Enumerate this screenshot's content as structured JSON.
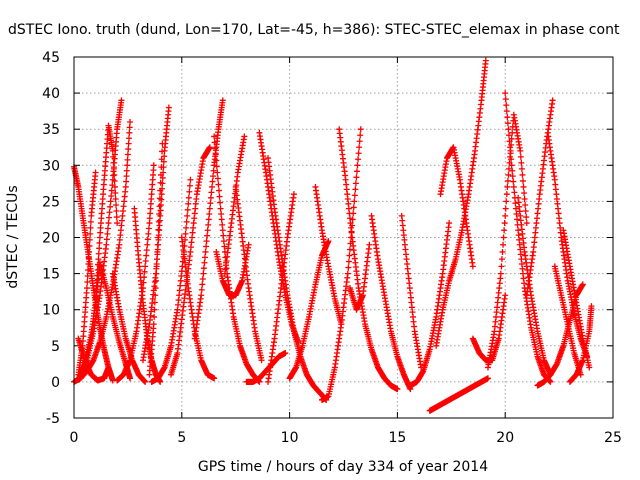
{
  "chart_data": {
    "type": "scatter",
    "title": "dSTEC Iono. truth (dund, Lon=170, Lat=-45, h=386): STEC-STEC_elemax in phase cont",
    "xlabel": "GPS time / hours of day 334 of year 2014",
    "ylabel": "dSTEC  / TECUs",
    "xlim": [
      0,
      25
    ],
    "ylim": [
      -5,
      45
    ],
    "xticks": [
      0,
      5,
      10,
      15,
      20,
      25
    ],
    "yticks": [
      -5,
      0,
      5,
      10,
      15,
      20,
      25,
      30,
      35,
      40,
      45
    ],
    "grid": true,
    "marker": "+",
    "color": "#ff0000",
    "series": [
      {
        "x": [
          0.0,
          0.2,
          0.4,
          0.6,
          0.8,
          1.0,
          1.2,
          1.4,
          1.6,
          1.8
        ],
        "y": [
          29.8,
          27.0,
          23.0,
          19.0,
          15.0,
          11.0,
          7.5,
          4.5,
          2.0,
          0.2
        ]
      },
      {
        "x": [
          0.0,
          0.3,
          0.6,
          0.9,
          1.2,
          1.5,
          1.8,
          2.1,
          2.4,
          2.6
        ],
        "y": [
          0.0,
          0.5,
          1.5,
          3.0,
          5.5,
          9.0,
          13.5,
          19.0,
          27.0,
          36.0
        ]
      },
      {
        "x": [
          0.2,
          0.5,
          0.8,
          1.1,
          1.4,
          1.6
        ],
        "y": [
          6.0,
          3.0,
          1.0,
          0.2,
          0.5,
          2.0
        ]
      },
      {
        "x": [
          0.2,
          0.5,
          0.8,
          1.0,
          1.2,
          1.5,
          1.8,
          2.1,
          2.4,
          2.6
        ],
        "y": [
          0.3,
          2.5,
          6.5,
          11.0,
          16.5,
          13.0,
          9.0,
          5.5,
          2.5,
          0.5
        ]
      },
      {
        "x": [
          0.2,
          0.4,
          0.6,
          0.8,
          1.0
        ],
        "y": [
          1.0,
          5.0,
          13.0,
          23.0,
          29.0
        ]
      },
      {
        "x": [
          1.0,
          1.2,
          1.4,
          1.6,
          1.8,
          2.0
        ],
        "y": [
          11.0,
          20.0,
          28.0,
          35.5,
          32.0,
          22.0
        ]
      },
      {
        "x": [
          0.3,
          0.6,
          0.9,
          1.2,
          1.5,
          1.8,
          2.0,
          2.2
        ],
        "y": [
          1.0,
          3.0,
          7.0,
          12.0,
          19.0,
          28.0,
          35.0,
          39.0
        ]
      },
      {
        "x": [
          1.8,
          2.1,
          2.4,
          2.7,
          3.0,
          3.3
        ],
        "y": [
          15.0,
          10.0,
          6.0,
          3.0,
          1.0,
          0.0
        ]
      },
      {
        "x": [
          2.0,
          2.3,
          2.6,
          2.9,
          3.2,
          3.5,
          3.7
        ],
        "y": [
          0.2,
          1.0,
          3.0,
          7.0,
          13.0,
          22.0,
          30.0
        ]
      },
      {
        "x": [
          2.8,
          3.0,
          3.2,
          3.4,
          3.6,
          3.8,
          4.0
        ],
        "y": [
          24.0,
          17.0,
          11.0,
          6.0,
          3.0,
          1.0,
          0.0
        ]
      },
      {
        "x": [
          3.2,
          3.5,
          3.8,
          4.0,
          4.2,
          4.4
        ],
        "y": [
          3.0,
          8.0,
          15.0,
          23.0,
          32.0,
          38.0
        ]
      },
      {
        "x": [
          3.5,
          3.7,
          3.9,
          4.1
        ],
        "y": [
          1.0,
          8.0,
          20.0,
          33.0
        ]
      },
      {
        "x": [
          3.6,
          3.9,
          4.2,
          4.5,
          4.8,
          5.1,
          5.4
        ],
        "y": [
          0.0,
          0.5,
          2.0,
          5.0,
          10.0,
          18.0,
          28.0
        ]
      },
      {
        "x": [
          4.5,
          4.8,
          5.1,
          5.4,
          5.7,
          6.0,
          6.3
        ],
        "y": [
          1.0,
          4.0,
          11.0,
          18.0,
          26.0,
          31.0,
          32.5
        ]
      },
      {
        "x": [
          5.0,
          5.3,
          5.6,
          5.9,
          6.2,
          6.5
        ],
        "y": [
          20.0,
          13.0,
          7.0,
          3.0,
          1.0,
          0.5
        ]
      },
      {
        "x": [
          5.6,
          5.9,
          6.2,
          6.5,
          6.7,
          6.9
        ],
        "y": [
          6.0,
          12.0,
          21.0,
          30.0,
          35.0,
          39.0
        ]
      },
      {
        "x": [
          6.5,
          6.8,
          7.1,
          7.4,
          7.7,
          8.0,
          8.3,
          8.6
        ],
        "y": [
          34.0,
          24.0,
          15.0,
          9.0,
          5.0,
          2.5,
          1.0,
          0.0
        ]
      },
      {
        "x": [
          6.6,
          6.9,
          7.2,
          7.5,
          7.8,
          8.1
        ],
        "y": [
          18.0,
          14.0,
          12.0,
          12.0,
          14.0,
          19.0
        ]
      },
      {
        "x": [
          7.0,
          7.3,
          7.6,
          7.9
        ],
        "y": [
          15.0,
          22.0,
          29.0,
          34.0
        ]
      },
      {
        "x": [
          7.5,
          7.8,
          8.1,
          8.4,
          8.7
        ],
        "y": [
          27.0,
          20.0,
          13.0,
          7.0,
          3.0
        ]
      },
      {
        "x": [
          8.0,
          8.3,
          8.6,
          8.9,
          9.2,
          9.5,
          9.8
        ],
        "y": [
          0.0,
          0.0,
          0.5,
          1.5,
          2.5,
          3.5,
          4.0
        ]
      },
      {
        "x": [
          8.6,
          8.9,
          9.2,
          9.5,
          9.8,
          10.1,
          10.4
        ],
        "y": [
          34.5,
          29.0,
          23.0,
          17.0,
          12.0,
          8.0,
          5.5
        ]
      },
      {
        "x": [
          9.0,
          9.3,
          9.6,
          9.9,
          10.2,
          10.5,
          10.8,
          11.1,
          11.4,
          11.7
        ],
        "y": [
          31.0,
          24.0,
          18.0,
          12.0,
          7.0,
          3.5,
          1.0,
          -0.5,
          -1.5,
          -2.5
        ]
      },
      {
        "x": [
          9.0,
          9.3,
          9.6,
          9.9,
          10.2
        ],
        "y": [
          0.0,
          6.0,
          13.0,
          20.0,
          26.0
        ]
      },
      {
        "x": [
          10.0,
          10.3,
          10.6,
          10.9,
          11.2,
          11.5,
          11.8
        ],
        "y": [
          0.5,
          2.0,
          5.0,
          9.0,
          13.5,
          17.5,
          19.5
        ]
      },
      {
        "x": [
          11.2,
          11.5,
          11.8,
          12.1,
          12.4
        ],
        "y": [
          27.0,
          21.0,
          16.0,
          11.5,
          8.0
        ]
      },
      {
        "x": [
          11.5,
          11.8,
          12.1,
          12.4,
          12.7,
          13.0,
          13.3
        ],
        "y": [
          -2.5,
          -2.0,
          2.0,
          8.0,
          15.0,
          25.0,
          35.0
        ]
      },
      {
        "x": [
          12.3,
          12.6,
          12.9,
          13.2,
          13.5,
          13.8,
          14.1,
          14.4,
          14.7,
          15.0
        ],
        "y": [
          35.0,
          28.0,
          20.0,
          13.0,
          8.0,
          4.5,
          2.0,
          0.5,
          -0.5,
          -1.0
        ]
      },
      {
        "x": [
          12.8,
          13.1,
          13.4,
          13.7
        ],
        "y": [
          13.0,
          10.0,
          12.0,
          19.0
        ]
      },
      {
        "x": [
          13.8,
          14.1,
          14.4,
          14.7,
          15.0,
          15.3,
          15.6
        ],
        "y": [
          23.0,
          17.0,
          12.0,
          7.0,
          3.5,
          1.0,
          -1.0
        ]
      },
      {
        "x": [
          15.2,
          15.5,
          15.8,
          16.1
        ],
        "y": [
          23.0,
          15.0,
          7.0,
          2.0
        ]
      },
      {
        "x": [
          15.6,
          15.9,
          16.2,
          16.5,
          16.8,
          17.1,
          17.4
        ],
        "y": [
          -0.5,
          0.0,
          1.5,
          4.5,
          9.0,
          15.0,
          22.0
        ]
      },
      {
        "x": [
          16.5,
          16.8,
          17.1,
          17.4,
          17.7,
          18.0,
          18.3,
          18.6,
          18.9,
          19.2
        ],
        "y": [
          -4.0,
          -3.5,
          -3.0,
          -2.5,
          -2.0,
          -1.5,
          -1.0,
          -0.5,
          0.0,
          0.5
        ]
      },
      {
        "x": [
          16.8,
          17.1,
          17.4,
          17.7,
          18.0,
          18.3,
          18.6,
          18.9,
          19.1
        ],
        "y": [
          5.0,
          10.0,
          14.0,
          17.0,
          21.0,
          26.0,
          32.0,
          39.0,
          44.5
        ]
      },
      {
        "x": [
          17.0,
          17.3,
          17.6,
          17.9,
          18.2,
          18.5
        ],
        "y": [
          26.0,
          31.0,
          32.5,
          28.0,
          22.0,
          16.0
        ]
      },
      {
        "x": [
          18.5,
          18.8,
          19.1,
          19.4,
          19.7,
          20.0
        ],
        "y": [
          6.0,
          4.0,
          3.0,
          3.0,
          6.0,
          12.0
        ]
      },
      {
        "x": [
          19.2,
          19.5,
          19.8,
          20.1,
          20.4,
          20.7,
          21.0
        ],
        "y": [
          2.0,
          7.0,
          15.0,
          27.0,
          37.0,
          32.0,
          22.0
        ]
      },
      {
        "x": [
          20.0,
          20.3,
          20.6,
          20.9,
          21.2,
          21.5,
          21.8,
          22.1
        ],
        "y": [
          40.0,
          30.0,
          21.0,
          13.0,
          7.5,
          3.5,
          1.0,
          0.0
        ]
      },
      {
        "x": [
          20.6,
          20.9,
          21.2,
          21.5,
          21.8,
          22.1
        ],
        "y": [
          25.5,
          18.0,
          12.0,
          7.0,
          3.0,
          1.0
        ]
      },
      {
        "x": [
          21.0,
          21.3,
          21.6,
          21.9,
          22.2
        ],
        "y": [
          12.0,
          18.0,
          26.0,
          33.0,
          39.0
        ]
      },
      {
        "x": [
          21.5,
          21.8,
          22.1,
          22.4,
          22.7,
          23.0,
          23.3,
          23.6
        ],
        "y": [
          -0.5,
          0.0,
          1.0,
          2.5,
          5.0,
          8.5,
          12.0,
          13.5
        ]
      },
      {
        "x": [
          22.0,
          22.3,
          22.6,
          22.9,
          23.2,
          23.5,
          23.8
        ],
        "y": [
          34.0,
          28.0,
          20.0,
          14.0,
          9.5,
          6.0,
          3.5
        ]
      },
      {
        "x": [
          22.3,
          22.6,
          22.9,
          23.2,
          23.5
        ],
        "y": [
          16.0,
          12.0,
          8.0,
          4.0,
          1.0
        ]
      },
      {
        "x": [
          22.7,
          23.0,
          23.3,
          23.6,
          23.9
        ],
        "y": [
          21.0,
          16.0,
          11.0,
          6.0,
          2.0
        ]
      },
      {
        "x": [
          23.0,
          23.3,
          23.6,
          23.9,
          24.0
        ],
        "y": [
          0.0,
          1.0,
          3.0,
          7.0,
          10.5
        ]
      }
    ]
  }
}
